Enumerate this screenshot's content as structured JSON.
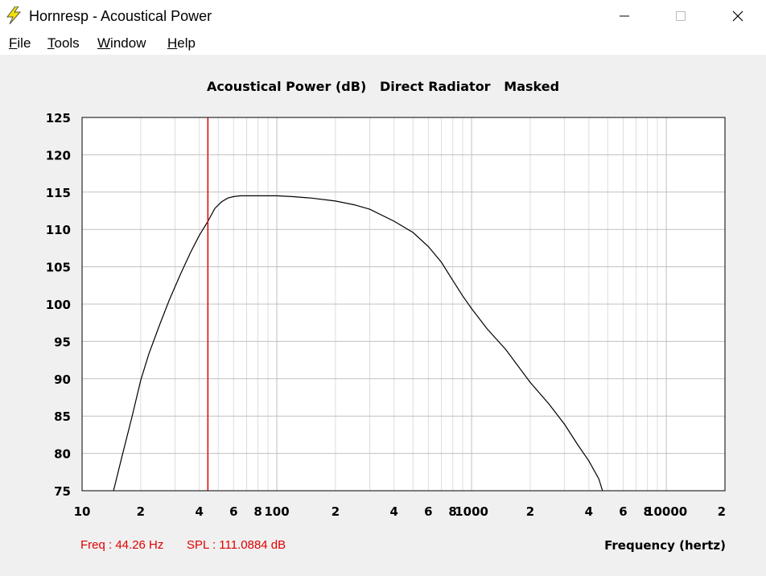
{
  "window": {
    "title": "Hornresp - Acoustical Power",
    "app_icon": "lightning-icon",
    "controls": [
      "minimize-icon",
      "maximize-icon",
      "close-icon"
    ]
  },
  "menu": {
    "items": [
      {
        "accel": "F",
        "rest": "ile"
      },
      {
        "accel": "T",
        "rest": "ools"
      },
      {
        "accel": "W",
        "rest": "indow"
      },
      {
        "accel": "H",
        "rest": "elp"
      }
    ]
  },
  "plot": {
    "title": "Acoustical Power (dB)   Direct Radiator   Masked",
    "xlabel": "Frequency (hertz)",
    "readout": {
      "freq": "Freq : 44.26 Hz",
      "spl": "SPL : 111.0884 dB"
    }
  },
  "chart_data": {
    "type": "line",
    "title": "Acoustical Power (dB)   Direct Radiator   Masked",
    "xlabel": "Frequency (hertz)",
    "ylabel": "",
    "xscale": "log",
    "xlim": [
      10,
      20000
    ],
    "ylim": [
      75,
      125
    ],
    "y_ticks": [
      "125",
      "120",
      "115",
      "110",
      "105",
      "100",
      "95",
      "90",
      "85",
      "80",
      "75"
    ],
    "x_ticks": [
      {
        "v": 10,
        "t": "10"
      },
      {
        "v": 20,
        "t": "2"
      },
      {
        "v": 40,
        "t": "4"
      },
      {
        "v": 60,
        "t": "6"
      },
      {
        "v": 80,
        "t": "8"
      },
      {
        "v": 100,
        "t": "100"
      },
      {
        "v": 200,
        "t": "2"
      },
      {
        "v": 400,
        "t": "4"
      },
      {
        "v": 600,
        "t": "6"
      },
      {
        "v": 800,
        "t": "8"
      },
      {
        "v": 1000,
        "t": "1000"
      },
      {
        "v": 2000,
        "t": "2"
      },
      {
        "v": 4000,
        "t": "4"
      },
      {
        "v": 6000,
        "t": "6"
      },
      {
        "v": 8000,
        "t": "8"
      },
      {
        "v": 10000,
        "t": "10000"
      },
      {
        "v": 20000,
        "t": "2"
      }
    ],
    "grid": true,
    "cursor": {
      "freq": 44.26,
      "spl": 111.0884
    },
    "colors": {
      "curve": "#000000",
      "cursor": "#e00000",
      "grid_minor": "#dddddd",
      "grid_major": "#c0c0c0"
    },
    "series": [
      {
        "x": [
          14.5,
          16,
          18,
          20,
          22,
          25,
          28,
          32,
          36,
          40,
          44.26,
          48,
          52,
          56,
          60,
          65,
          70,
          80,
          100,
          120,
          150,
          200,
          250,
          300,
          400,
          500,
          600,
          700,
          800,
          900,
          1000,
          1200,
          1500,
          2000,
          2500,
          3000,
          3500,
          4000,
          4500,
          4700
        ],
        "y": [
          75,
          79.5,
          84.8,
          89.8,
          93.3,
          97.2,
          100.5,
          104.0,
          106.9,
          109.2,
          111.09,
          112.8,
          113.7,
          114.2,
          114.4,
          114.5,
          114.5,
          114.5,
          114.5,
          114.4,
          114.2,
          113.8,
          113.3,
          112.7,
          111.1,
          109.6,
          107.7,
          105.6,
          103.2,
          101.1,
          99.4,
          96.7,
          93.9,
          89.5,
          86.6,
          83.9,
          81.2,
          79.0,
          76.6,
          75.0
        ]
      }
    ]
  }
}
